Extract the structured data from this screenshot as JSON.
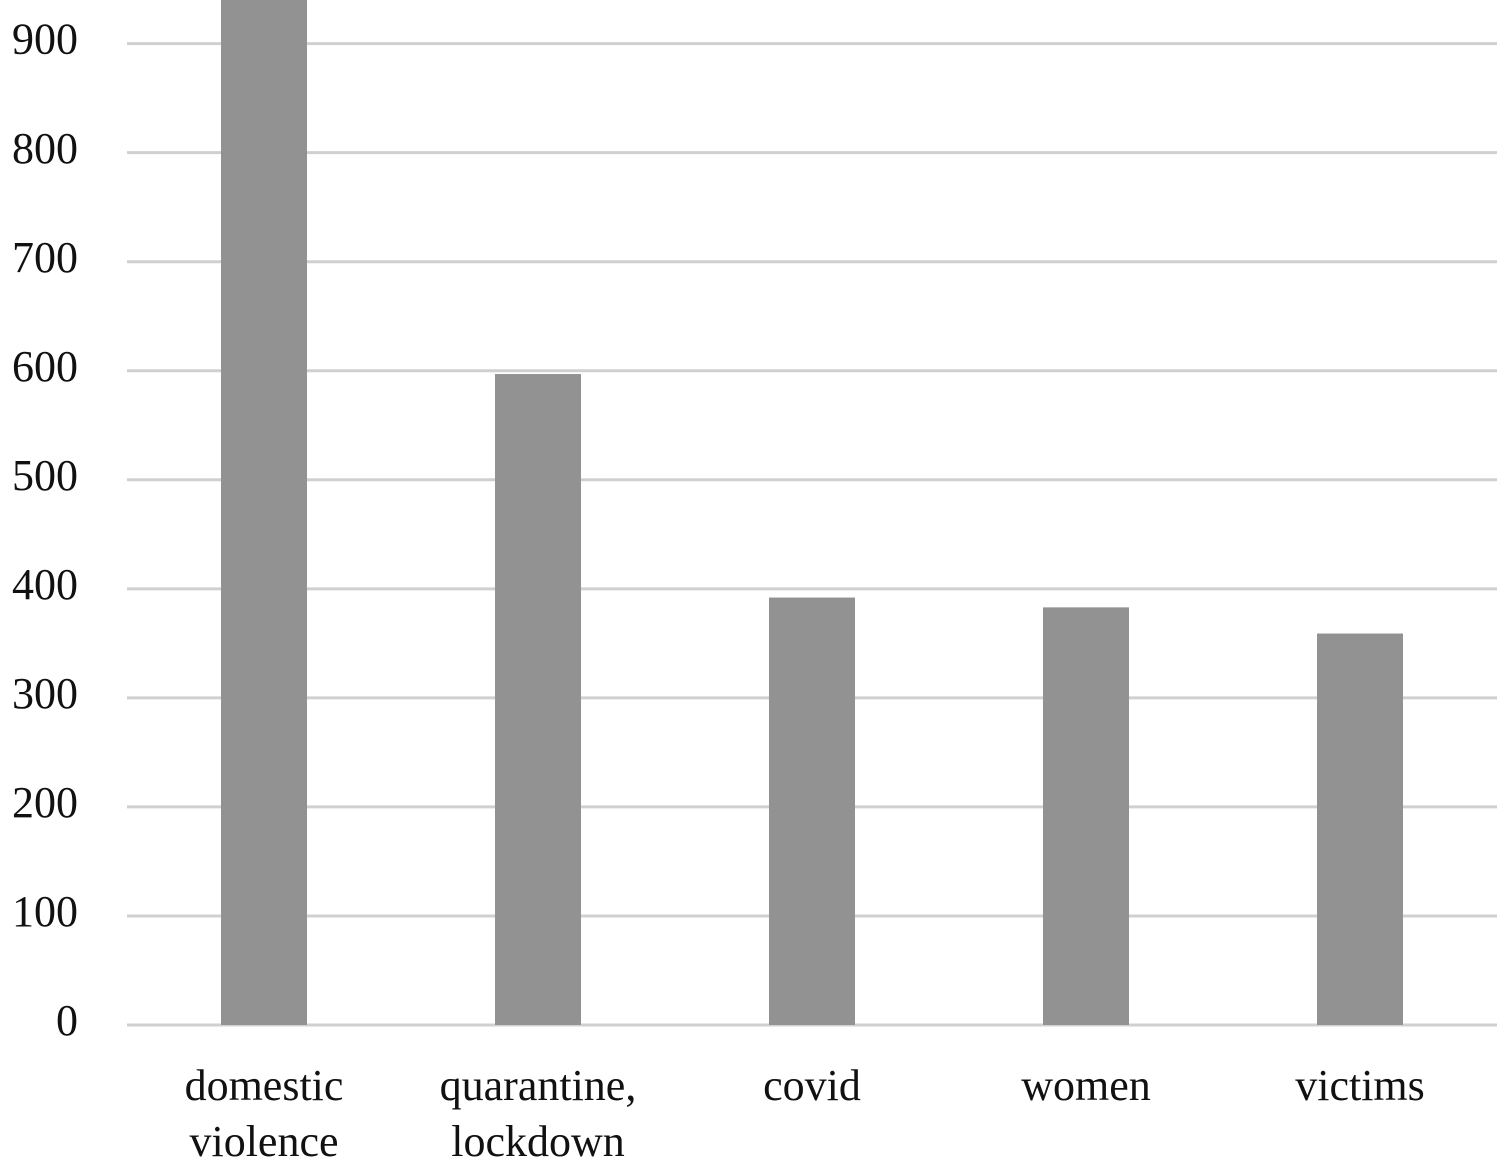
{
  "chart_data": {
    "type": "bar",
    "categories": [
      "domestic violence",
      "quarantine, lockdown",
      "covid",
      "women",
      "victims"
    ],
    "values": [
      940,
      597,
      392,
      383,
      359
    ],
    "color": "#929292",
    "ylim": [
      0,
      940
    ],
    "yticks": [
      0,
      100,
      200,
      300,
      400,
      500,
      600,
      700,
      800,
      900
    ],
    "grid": true
  }
}
